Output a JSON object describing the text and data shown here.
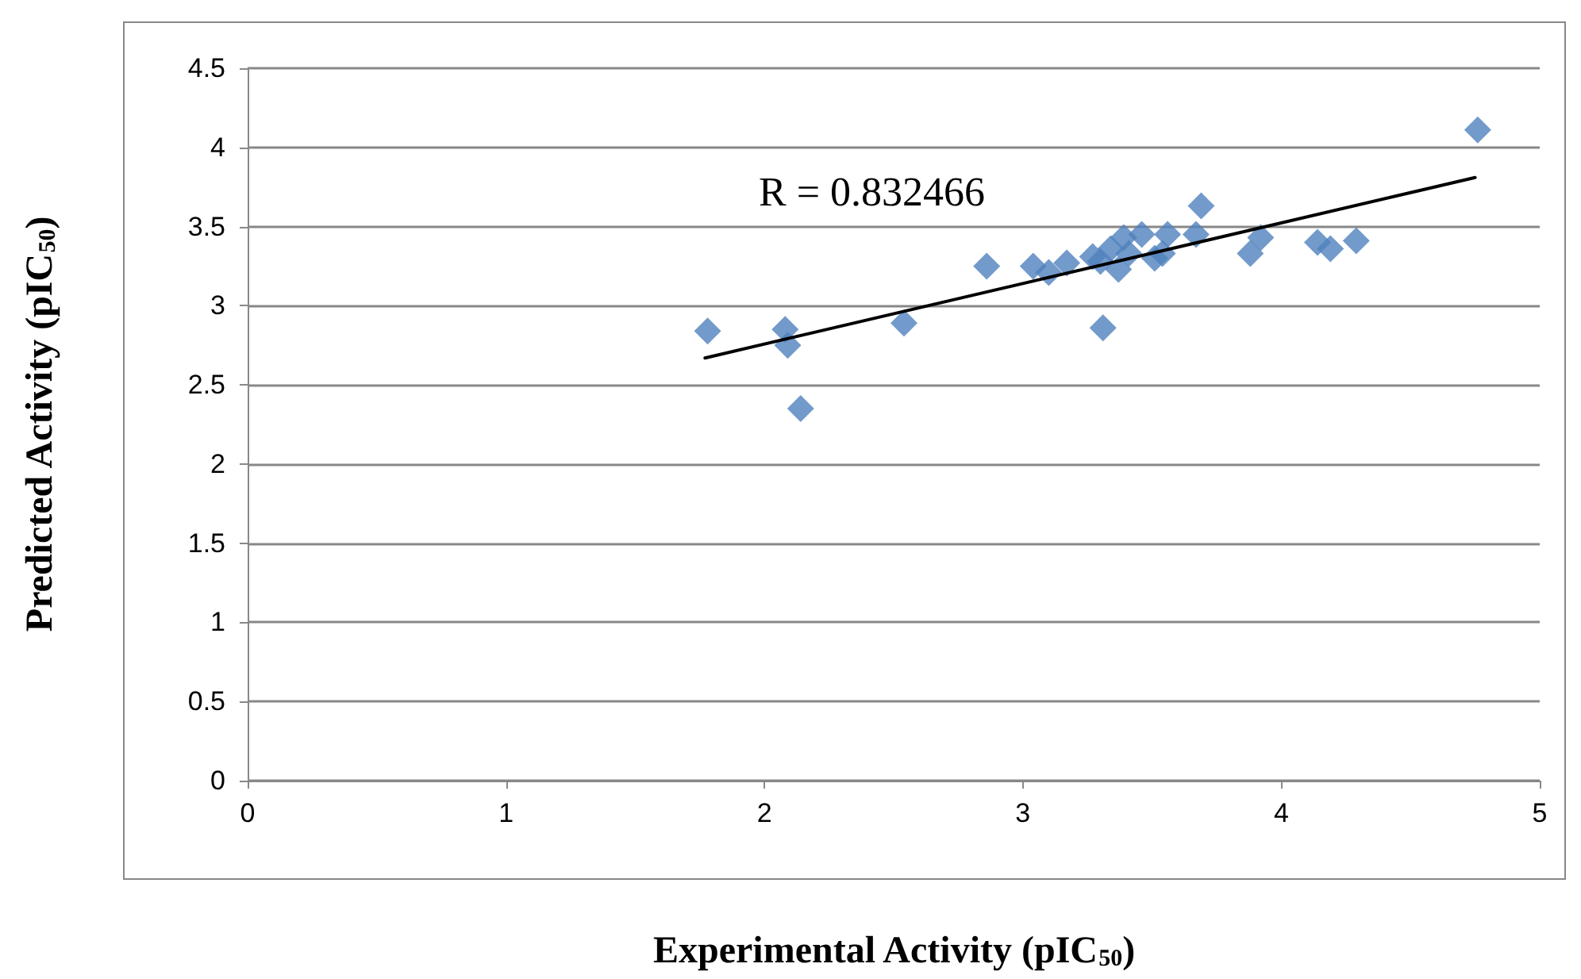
{
  "chart_data": {
    "type": "scatter",
    "xlabel": "Experimental Activity (pIC$_{50}$)",
    "ylabel": "Predicted Activity (pIC$_{50}$)",
    "annotations": [
      "R = 0.832466"
    ],
    "xlim": [
      0,
      5
    ],
    "xticks": [
      0,
      1,
      2,
      3,
      4,
      5
    ],
    "ylim": [
      0,
      4.5
    ],
    "yticks": [
      0,
      0.5,
      1,
      1.5,
      2,
      2.5,
      3,
      3.5,
      4,
      4.5
    ],
    "grid": "y",
    "marker": "diamond",
    "series": [
      {
        "color": "#4f81bd",
        "x": [
          1.78,
          2.08,
          2.09,
          2.14,
          2.54,
          2.86,
          3.04,
          3.1,
          3.17,
          3.27,
          3.3,
          3.31,
          3.34,
          3.37,
          3.39,
          3.41,
          3.46,
          3.51,
          3.54,
          3.56,
          3.69,
          3.67,
          3.88,
          3.92,
          4.14,
          4.19,
          4.29,
          4.76
        ],
        "values": [
          2.84,
          2.85,
          2.75,
          2.35,
          2.89,
          3.25,
          3.25,
          3.21,
          3.27,
          3.31,
          3.28,
          2.86,
          3.36,
          3.23,
          3.43,
          3.33,
          3.45,
          3.3,
          3.33,
          3.45,
          3.63,
          3.45,
          3.33,
          3.43,
          3.4,
          3.36,
          3.41,
          4.11
        ]
      },
      {
        "type": "line",
        "color": "#000000",
        "marker": "none",
        "line_style": "solid",
        "x": [
          1.77,
          4.75
        ],
        "values": [
          2.67,
          3.81
        ]
      }
    ]
  }
}
